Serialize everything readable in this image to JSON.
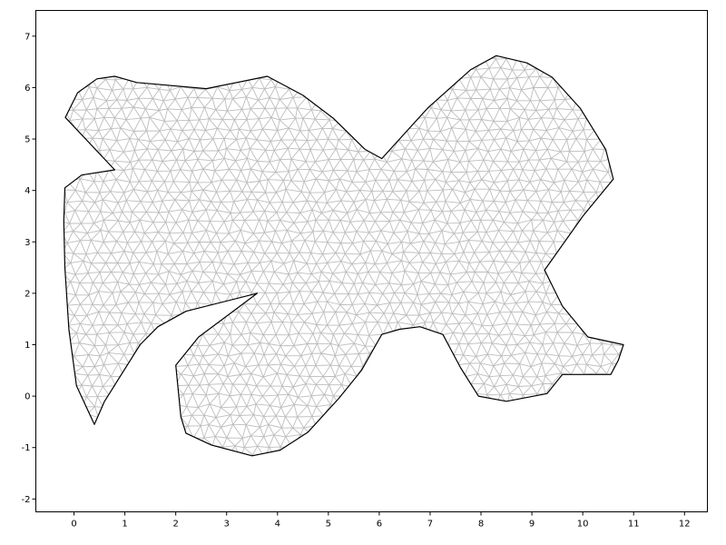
{
  "chart_data": {
    "type": "mesh",
    "title": "",
    "xlabel": "",
    "ylabel": "",
    "xlim": [
      -0.75,
      12.45
    ],
    "ylim": [
      -2.25,
      7.5
    ],
    "x_ticks": [
      "0",
      "1",
      "2",
      "3",
      "4",
      "5",
      "6",
      "7",
      "8",
      "9",
      "10",
      "11",
      "12"
    ],
    "y_ticks": [
      "-2",
      "-1",
      "0",
      "1",
      "2",
      "3",
      "4",
      "5",
      "6",
      "7"
    ],
    "grid": false,
    "mesh_element": "triangle",
    "boundary": [
      [
        -0.17,
        5.42
      ],
      [
        0.07,
        5.9
      ],
      [
        0.45,
        6.17
      ],
      [
        0.8,
        6.22
      ],
      [
        1.23,
        6.1
      ],
      [
        2.6,
        5.98
      ],
      [
        3.8,
        6.22
      ],
      [
        4.5,
        5.85
      ],
      [
        5.1,
        5.4
      ],
      [
        5.72,
        4.8
      ],
      [
        6.05,
        4.62
      ],
      [
        6.95,
        5.6
      ],
      [
        7.8,
        6.35
      ],
      [
        8.3,
        6.62
      ],
      [
        8.9,
        6.48
      ],
      [
        9.4,
        6.2
      ],
      [
        9.95,
        5.6
      ],
      [
        10.45,
        4.8
      ],
      [
        10.6,
        4.22
      ],
      [
        10.0,
        3.5
      ],
      [
        9.25,
        2.45
      ],
      [
        9.6,
        1.75
      ],
      [
        10.1,
        1.15
      ],
      [
        10.8,
        1.0
      ],
      [
        10.7,
        0.7
      ],
      [
        10.55,
        0.42
      ],
      [
        9.6,
        0.42
      ],
      [
        9.3,
        0.05
      ],
      [
        8.5,
        -0.1
      ],
      [
        7.95,
        0.0
      ],
      [
        7.6,
        0.55
      ],
      [
        7.25,
        1.2
      ],
      [
        6.8,
        1.35
      ],
      [
        6.4,
        1.3
      ],
      [
        6.05,
        1.2
      ],
      [
        5.65,
        0.5
      ],
      [
        5.2,
        -0.05
      ],
      [
        4.6,
        -0.7
      ],
      [
        4.05,
        -1.05
      ],
      [
        3.5,
        -1.16
      ],
      [
        2.7,
        -0.95
      ],
      [
        2.2,
        -0.72
      ],
      [
        2.1,
        -0.4
      ],
      [
        2.0,
        0.6
      ],
      [
        2.45,
        1.15
      ],
      [
        3.6,
        2.0
      ],
      [
        2.2,
        1.65
      ],
      [
        1.65,
        1.35
      ],
      [
        1.3,
        1.0
      ],
      [
        0.6,
        -0.1
      ],
      [
        0.4,
        -0.55
      ],
      [
        0.05,
        0.2
      ],
      [
        -0.1,
        1.3
      ],
      [
        -0.18,
        2.5
      ],
      [
        -0.2,
        3.4
      ],
      [
        -0.18,
        4.05
      ],
      [
        0.15,
        4.3
      ],
      [
        0.8,
        4.4
      ]
    ]
  },
  "style": {
    "background": "#ffffff",
    "frame_color": "#000000",
    "boundary_color": "#000000",
    "mesh_color": "#bdbdbd"
  }
}
